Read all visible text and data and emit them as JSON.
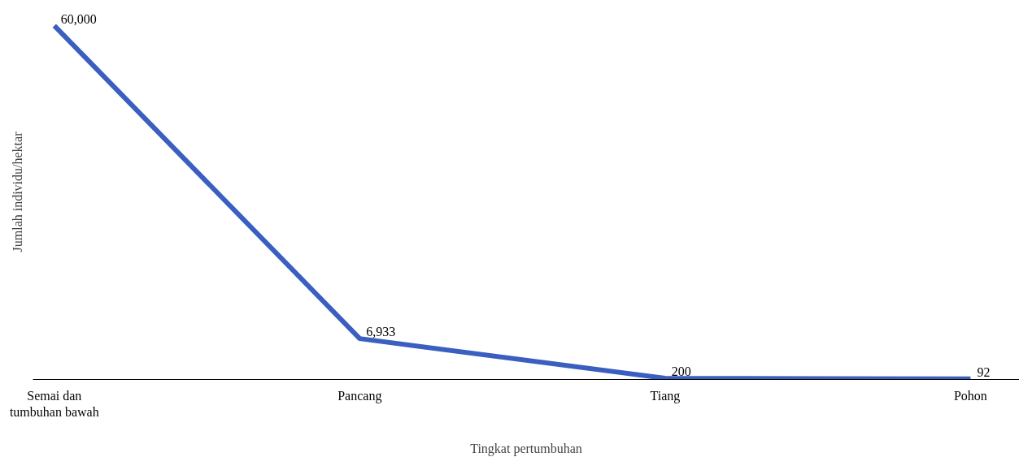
{
  "chart_data": {
    "type": "line",
    "xlabel": "Tingkat pertumbuhan",
    "ylabel": "Jumlah individu/hektar",
    "categories": [
      "Semai dan\ntumbuhan bawah",
      "Pancang",
      "Tiang",
      "Pohon"
    ],
    "series": [
      {
        "color": "#3b5fc0",
        "values": [
          60000,
          6933,
          200,
          92
        ],
        "value_labels": [
          "60,000",
          "6,933",
          "200",
          "92"
        ]
      }
    ],
    "grid": false,
    "marker": "none",
    "line_style": "solid",
    "tick_labels": "x"
  }
}
